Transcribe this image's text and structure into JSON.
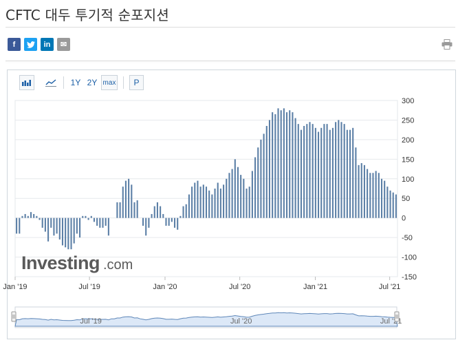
{
  "page": {
    "title": "CFTC 대두 투기적 순포지션"
  },
  "social": {
    "facebook": "f",
    "twitter": "t",
    "linkedin": "in",
    "email": "✉"
  },
  "toolbar": {
    "range_1y": "1Y",
    "range_2y": "2Y",
    "range_max": "max",
    "mode_p": "P"
  },
  "brand": {
    "logo_main": "Investing",
    "logo_suffix": ".com"
  },
  "colors": {
    "bar": "#5b7fa6",
    "navigator_fill": "#dce8f7",
    "navigator_line": "#5d86b8",
    "accent_link": "#1b5fa6"
  },
  "icons": {
    "bar_chart": "bar-chart-icon",
    "line_chart": "line-chart-icon",
    "print": "printer-icon"
  },
  "chart_data": {
    "type": "bar",
    "title": "",
    "xlabel": "",
    "ylabel": "",
    "ylim": [
      -150,
      300
    ],
    "yticks": [
      300,
      250,
      200,
      150,
      100,
      50,
      0,
      -50,
      -100,
      -150
    ],
    "xtick_labels": [
      "Jan '19",
      "Jul '19",
      "Jan '20",
      "Jul '20",
      "Jan '21",
      "Jul '21"
    ],
    "navigator_labels": [
      "Jul '19",
      "Jul '20",
      "Jul '21"
    ],
    "grid": true,
    "axis_position": "right",
    "period": "weekly",
    "start": "2019-01-01",
    "values": [
      -40,
      -40,
      5,
      10,
      5,
      15,
      10,
      5,
      -5,
      -25,
      -35,
      -60,
      -25,
      -45,
      -40,
      -55,
      -70,
      -75,
      -80,
      -80,
      -65,
      -40,
      -50,
      5,
      5,
      -5,
      5,
      -10,
      -20,
      -25,
      -25,
      -20,
      -45,
      0,
      0,
      40,
      40,
      80,
      95,
      100,
      85,
      40,
      45,
      0,
      -20,
      -45,
      -25,
      10,
      30,
      40,
      30,
      10,
      -20,
      -20,
      -10,
      -25,
      -30,
      5,
      30,
      35,
      60,
      80,
      90,
      95,
      80,
      85,
      80,
      70,
      60,
      75,
      90,
      75,
      85,
      100,
      115,
      125,
      150,
      130,
      110,
      100,
      75,
      80,
      120,
      155,
      180,
      200,
      215,
      235,
      250,
      270,
      265,
      280,
      275,
      280,
      270,
      275,
      270,
      255,
      240,
      225,
      235,
      240,
      245,
      240,
      230,
      220,
      230,
      240,
      240,
      225,
      230,
      245,
      250,
      245,
      240,
      225,
      225,
      230,
      180,
      135,
      140,
      135,
      125,
      115,
      115,
      120,
      115,
      100,
      95,
      80,
      70,
      65,
      60
    ]
  }
}
